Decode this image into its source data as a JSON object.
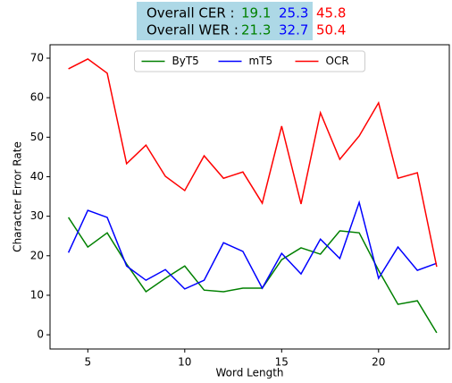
{
  "chart_data": {
    "type": "line",
    "summary": [
      {
        "label": "Overall CER :",
        "values": [
          19.1,
          25.3,
          45.8
        ]
      },
      {
        "label": "Overall WER :",
        "values": [
          21.3,
          32.7,
          50.4
        ]
      }
    ],
    "xlabel": "Word Length",
    "ylabel": "Character Error Rate",
    "x": [
      4,
      5,
      6,
      7,
      8,
      9,
      10,
      11,
      12,
      13,
      14,
      15,
      16,
      17,
      18,
      19,
      20,
      21,
      22,
      23
    ],
    "series": [
      {
        "name": "ByT5",
        "color": "#008000",
        "values": [
          29.7,
          22.2,
          25.8,
          17.9,
          10.9,
          14.3,
          17.4,
          11.3,
          10.9,
          11.8,
          11.8,
          19.0,
          22.0,
          20.4,
          26.3,
          25.8,
          16.3,
          7.7,
          8.6,
          0.5
        ]
      },
      {
        "name": "mT5",
        "color": "#0000ff",
        "values": [
          20.8,
          31.5,
          29.7,
          17.4,
          13.8,
          16.5,
          11.6,
          13.8,
          23.3,
          21.1,
          11.8,
          20.6,
          15.4,
          24.2,
          19.3,
          33.5,
          14.3,
          22.2,
          16.3,
          18.1
        ]
      },
      {
        "name": "OCR",
        "color": "#ff0000",
        "values": [
          67.3,
          69.8,
          66.2,
          43.3,
          48.0,
          40.1,
          36.5,
          45.3,
          39.6,
          41.2,
          33.3,
          52.8,
          33.1,
          56.2,
          44.4,
          50.3,
          58.7,
          39.6,
          41.0,
          17.2
        ]
      }
    ],
    "xlim": [
      3.05,
      23.65
    ],
    "ylim": [
      -3.6,
      73.4
    ],
    "xticks": [
      5,
      10,
      15,
      20
    ],
    "yticks": [
      0,
      10,
      20,
      30,
      40,
      50,
      60,
      70
    ],
    "legend": "upper center",
    "grid": false
  }
}
